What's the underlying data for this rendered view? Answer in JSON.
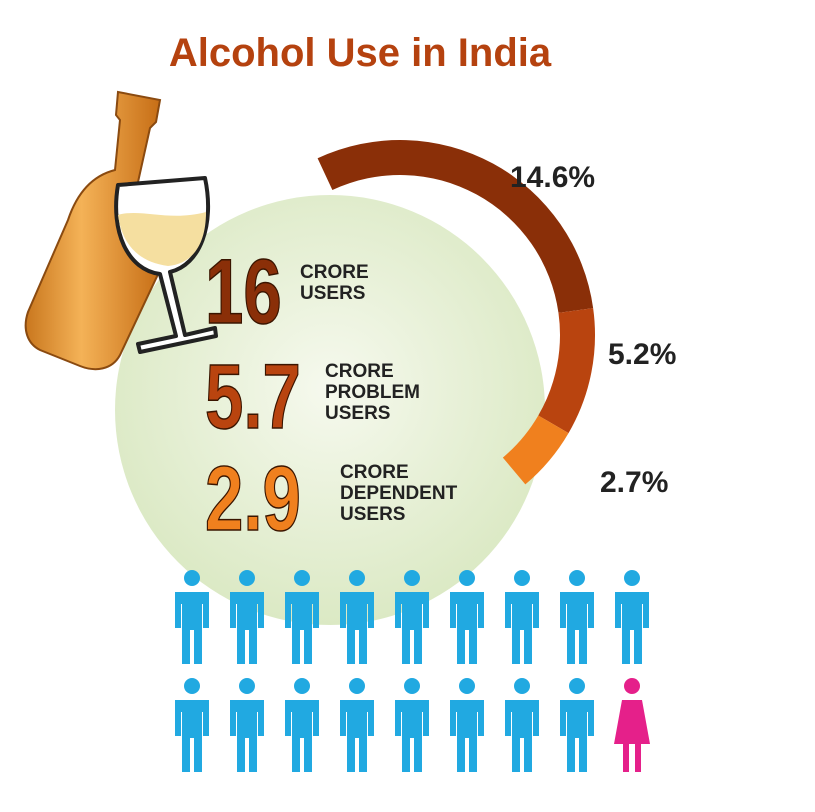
{
  "chart_data": {
    "type": "radial-bar",
    "title": "Alcohol Use in India",
    "values": [
      14.6,
      5.2,
      2.7
    ],
    "value_labels": [
      "14.6%",
      "5.2%",
      "2.7%"
    ],
    "colors": [
      "#8a2f08",
      "#b9440f",
      "#f0801e"
    ]
  },
  "stats": [
    {
      "number": 16,
      "lines": [
        "CRORE",
        "USERS"
      ],
      "color": "#8a2f08"
    },
    {
      "number": 5.7,
      "lines": [
        "CRORE",
        "PROBLEM",
        "USERS"
      ],
      "color": "#b9440f"
    },
    {
      "number": 2.9,
      "lines": [
        "CRORE",
        "DEPENDENT",
        "USERS"
      ],
      "color": "#f0801e"
    }
  ]
}
